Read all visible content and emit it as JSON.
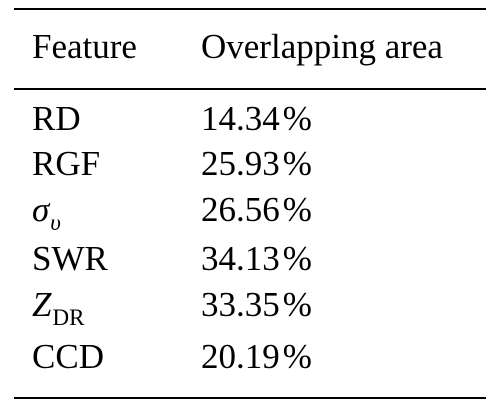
{
  "table": {
    "headers": [
      "Feature",
      "Overlapping area"
    ],
    "rows": [
      {
        "feature": "RD",
        "value": "14.34",
        "unit": "%"
      },
      {
        "feature": "RGF",
        "value": "25.93",
        "unit": "%"
      },
      {
        "feature_symbol": "σ",
        "feature_subscript": "υ",
        "value": "26.56",
        "unit": "%"
      },
      {
        "feature": "SWR",
        "value": "34.13",
        "unit": "%"
      },
      {
        "feature_symbol": "Z",
        "feature_subscript": "DR",
        "value": "33.35",
        "unit": "%"
      },
      {
        "feature": "CCD",
        "value": "20.19",
        "unit": "%"
      }
    ]
  }
}
